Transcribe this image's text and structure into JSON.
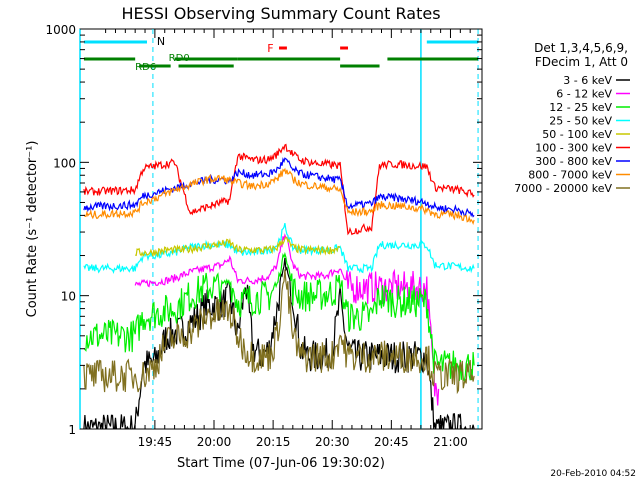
{
  "chart_data": {
    "type": "line",
    "title": "HESSI Observing Summary Count Rates",
    "xlabel": "Start Time (07-Jun-06 19:30:02)",
    "ylabel": "Count Rate (s⁻¹ detector⁻¹)",
    "yscale": "log",
    "xlim_minutes": [
      -4,
      98
    ],
    "ylim": [
      1,
      1000
    ],
    "x_ticks": [
      {
        "min": 15,
        "label": "19:45"
      },
      {
        "min": 30,
        "label": "20:00"
      },
      {
        "min": 45,
        "label": "20:15"
      },
      {
        "min": 60,
        "label": "20:30"
      },
      {
        "min": 75,
        "label": "20:45"
      },
      {
        "min": 90,
        "label": "21:00"
      }
    ],
    "y_ticks": [
      {
        "value": 1,
        "label": "1"
      },
      {
        "value": 10,
        "label": "10"
      },
      {
        "value": 100,
        "label": "100"
      },
      {
        "value": 1000,
        "label": "1000"
      }
    ],
    "legend": {
      "title_lines": [
        "Det 1,3,4,5,6,9,",
        "FDecim 1, Att 0"
      ],
      "placement": "right"
    },
    "series": [
      {
        "name": "3 - 6 keV",
        "color": "#000000",
        "points": [
          [
            -3,
            1
          ],
          [
            10,
            1
          ],
          [
            12,
            3
          ],
          [
            15,
            3.2
          ],
          [
            18,
            5
          ],
          [
            22,
            5.5
          ],
          [
            26,
            7
          ],
          [
            28,
            8.5
          ],
          [
            32,
            8.5
          ],
          [
            34,
            10
          ],
          [
            36,
            5
          ],
          [
            38,
            12
          ],
          [
            40,
            4
          ],
          [
            42,
            3.5
          ],
          [
            44,
            4
          ],
          [
            46,
            8
          ],
          [
            48,
            18
          ],
          [
            50,
            10
          ],
          [
            52,
            4
          ],
          [
            54,
            3.5
          ],
          [
            58,
            3.5
          ],
          [
            60,
            4
          ],
          [
            62,
            9
          ],
          [
            64,
            4
          ],
          [
            66,
            3.5
          ],
          [
            72,
            3.5
          ],
          [
            76,
            3.5
          ],
          [
            80,
            3.5
          ],
          [
            84,
            3.5
          ],
          [
            86,
            1
          ],
          [
            92,
            1
          ],
          [
            96,
            1
          ]
        ]
      },
      {
        "name": "6 - 12 keV",
        "color": "#ff00ff",
        "points": [
          [
            10,
            12
          ],
          [
            14,
            12.5
          ],
          [
            18,
            13
          ],
          [
            20,
            13.5
          ],
          [
            24,
            15
          ],
          [
            28,
            16
          ],
          [
            32,
            17
          ],
          [
            34,
            19
          ],
          [
            36,
            13
          ],
          [
            40,
            13
          ],
          [
            44,
            14
          ],
          [
            46,
            17
          ],
          [
            48,
            30
          ],
          [
            50,
            17
          ],
          [
            52,
            14
          ],
          [
            58,
            14
          ],
          [
            60,
            15
          ],
          [
            62,
            16
          ],
          [
            64,
            11.5
          ],
          [
            70,
            11.5
          ],
          [
            72,
            11.5
          ],
          [
            76,
            11.5
          ],
          [
            80,
            11.5
          ],
          [
            84,
            11.5
          ],
          [
            86,
            2
          ],
          [
            87,
            2
          ]
        ]
      },
      {
        "name": "12 - 25 keV",
        "color": "#00ee00",
        "points": [
          [
            -3,
            5
          ],
          [
            10,
            5
          ],
          [
            12,
            7
          ],
          [
            16,
            7.5
          ],
          [
            20,
            8
          ],
          [
            24,
            10
          ],
          [
            28,
            11.5
          ],
          [
            32,
            12
          ],
          [
            34,
            13
          ],
          [
            36,
            9
          ],
          [
            40,
            9.5
          ],
          [
            44,
            10
          ],
          [
            46,
            12
          ],
          [
            48,
            22
          ],
          [
            50,
            11
          ],
          [
            52,
            10
          ],
          [
            56,
            10
          ],
          [
            60,
            10.5
          ],
          [
            62,
            12
          ],
          [
            64,
            7
          ],
          [
            70,
            7
          ],
          [
            72,
            10
          ],
          [
            76,
            9
          ],
          [
            80,
            9
          ],
          [
            84,
            9
          ],
          [
            86,
            3
          ],
          [
            96,
            3
          ]
        ]
      },
      {
        "name": "25 - 50 keV",
        "color": "#00ffff",
        "points": [
          [
            -3,
            16
          ],
          [
            10,
            16
          ],
          [
            12,
            20
          ],
          [
            16,
            20
          ],
          [
            20,
            21
          ],
          [
            24,
            23
          ],
          [
            28,
            24
          ],
          [
            32,
            24
          ],
          [
            34,
            24
          ],
          [
            36,
            21
          ],
          [
            40,
            21
          ],
          [
            44,
            22
          ],
          [
            46,
            24
          ],
          [
            48,
            33
          ],
          [
            50,
            23
          ],
          [
            52,
            22
          ],
          [
            56,
            22
          ],
          [
            60,
            22
          ],
          [
            62,
            23
          ],
          [
            64,
            16
          ],
          [
            70,
            16
          ],
          [
            72,
            24
          ],
          [
            76,
            24
          ],
          [
            80,
            24
          ],
          [
            84,
            24
          ],
          [
            86,
            17
          ],
          [
            96,
            16
          ]
        ]
      },
      {
        "name": "50 - 100 keV",
        "color": "#c8c800",
        "points": [
          [
            10,
            21
          ],
          [
            14,
            21
          ],
          [
            18,
            22
          ],
          [
            22,
            22
          ],
          [
            26,
            23
          ],
          [
            30,
            24
          ],
          [
            34,
            25
          ],
          [
            36,
            22
          ],
          [
            40,
            22
          ],
          [
            44,
            22
          ],
          [
            46,
            23
          ],
          [
            48,
            27
          ],
          [
            50,
            23
          ],
          [
            52,
            22
          ],
          [
            56,
            22
          ],
          [
            60,
            22
          ],
          [
            62,
            23
          ]
        ]
      },
      {
        "name": "100 - 300 keV",
        "color": "#ff0000",
        "points": [
          [
            -3,
            60
          ],
          [
            10,
            62
          ],
          [
            12,
            90
          ],
          [
            16,
            95
          ],
          [
            20,
            100
          ],
          [
            24,
            42
          ],
          [
            28,
            46
          ],
          [
            32,
            50
          ],
          [
            34,
            52
          ],
          [
            36,
            112
          ],
          [
            40,
            104
          ],
          [
            44,
            105
          ],
          [
            46,
            115
          ],
          [
            48,
            135
          ],
          [
            50,
            115
          ],
          [
            52,
            104
          ],
          [
            56,
            98
          ],
          [
            60,
            96
          ],
          [
            62,
            94
          ],
          [
            64,
            30
          ],
          [
            70,
            33
          ],
          [
            72,
            95
          ],
          [
            76,
            97
          ],
          [
            80,
            95
          ],
          [
            84,
            93
          ],
          [
            86,
            65
          ],
          [
            92,
            62
          ],
          [
            96,
            57
          ]
        ]
      },
      {
        "name": "300 - 800 keV",
        "color": "#0000ff",
        "points": [
          [
            -3,
            46
          ],
          [
            10,
            48
          ],
          [
            12,
            56
          ],
          [
            16,
            60
          ],
          [
            20,
            64
          ],
          [
            24,
            69
          ],
          [
            28,
            73
          ],
          [
            32,
            75
          ],
          [
            34,
            72
          ],
          [
            36,
            84
          ],
          [
            40,
            80
          ],
          [
            44,
            82
          ],
          [
            46,
            88
          ],
          [
            48,
            105
          ],
          [
            50,
            88
          ],
          [
            52,
            82
          ],
          [
            56,
            78
          ],
          [
            60,
            75
          ],
          [
            62,
            73
          ],
          [
            64,
            47
          ],
          [
            70,
            49
          ],
          [
            72,
            55
          ],
          [
            76,
            54
          ],
          [
            80,
            52
          ],
          [
            84,
            50
          ],
          [
            86,
            46
          ],
          [
            92,
            44
          ],
          [
            96,
            40
          ]
        ]
      },
      {
        "name": "800 - 7000 keV",
        "color": "#ff8c00",
        "points": [
          [
            -3,
            40
          ],
          [
            10,
            42
          ],
          [
            12,
            50
          ],
          [
            16,
            55
          ],
          [
            20,
            62
          ],
          [
            24,
            68
          ],
          [
            28,
            74
          ],
          [
            32,
            76
          ],
          [
            34,
            73
          ],
          [
            36,
            70
          ],
          [
            40,
            66
          ],
          [
            44,
            70
          ],
          [
            46,
            75
          ],
          [
            48,
            88
          ],
          [
            50,
            75
          ],
          [
            52,
            69
          ],
          [
            56,
            66
          ],
          [
            60,
            64
          ],
          [
            62,
            62
          ],
          [
            64,
            42
          ],
          [
            70,
            43
          ],
          [
            72,
            48
          ],
          [
            76,
            47
          ],
          [
            80,
            46
          ],
          [
            84,
            44
          ],
          [
            86,
            41
          ],
          [
            92,
            40
          ],
          [
            96,
            37
          ]
        ]
      },
      {
        "name": "7000 - 20000 keV",
        "color": "#807020",
        "points": [
          [
            -3,
            2.5
          ],
          [
            10,
            2.5
          ],
          [
            12,
            2.5
          ],
          [
            15,
            3
          ],
          [
            18,
            4.5
          ],
          [
            22,
            5
          ],
          [
            26,
            6
          ],
          [
            28,
            7
          ],
          [
            32,
            7.5
          ],
          [
            34,
            7.5
          ],
          [
            36,
            5
          ],
          [
            38,
            4
          ],
          [
            40,
            3.5
          ],
          [
            44,
            3.5
          ],
          [
            46,
            5
          ],
          [
            48,
            15
          ],
          [
            50,
            5
          ],
          [
            52,
            3.5
          ],
          [
            56,
            3.5
          ],
          [
            60,
            3.5
          ],
          [
            62,
            5
          ],
          [
            64,
            3.5
          ],
          [
            70,
            3.5
          ],
          [
            76,
            3.5
          ],
          [
            80,
            3.5
          ],
          [
            84,
            3.5
          ],
          [
            86,
            2.5
          ],
          [
            96,
            2.5
          ]
        ]
      }
    ],
    "annotations": {
      "night_label": "N",
      "flare_label": "F",
      "rd_labels": [
        "RD6",
        "RD0"
      ],
      "night_boundaries_min": [
        -4,
        14.5,
        82.5,
        97
      ],
      "night_segments_min": [
        [
          -3,
          13
        ],
        [
          84,
          97
        ]
      ],
      "flare_segments_min": [
        [
          46.5,
          48.5
        ],
        [
          62,
          64
        ]
      ],
      "rd_upper_segments_min": [
        [
          -3,
          10
        ],
        [
          20,
          36
        ],
        [
          36,
          62
        ],
        [
          74,
          97
        ]
      ],
      "rd_lower_segments_min": [
        [
          11,
          19
        ],
        [
          21,
          35
        ],
        [
          62,
          72
        ]
      ]
    }
  },
  "footer": {
    "timestamp": "20-Feb-2010 04:52"
  }
}
